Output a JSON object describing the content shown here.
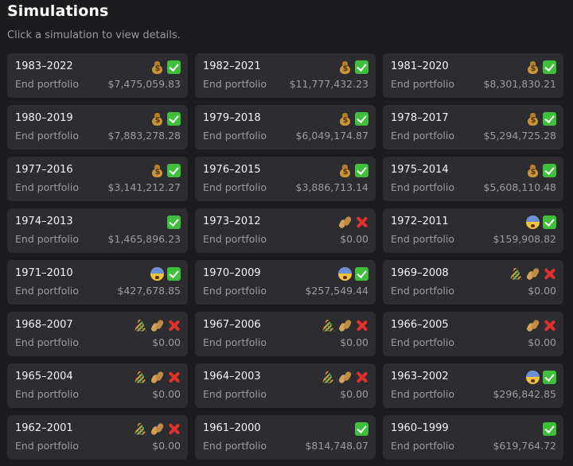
{
  "page": {
    "title": "Simulations",
    "subtitle": "Click a simulation to view details."
  },
  "cards": [
    {
      "years": "1983–2022",
      "label": "End portfolio",
      "value": "$7,475,059.83",
      "icons": [
        "money-bag-icon",
        "check-icon"
      ]
    },
    {
      "years": "1982–2021",
      "label": "End portfolio",
      "value": "$11,777,432.23",
      "icons": [
        "money-bag-icon",
        "check-icon"
      ]
    },
    {
      "years": "1981–2020",
      "label": "End portfolio",
      "value": "$8,301,830.21",
      "icons": [
        "money-bag-icon",
        "check-icon"
      ]
    },
    {
      "years": "1980–2019",
      "label": "End portfolio",
      "value": "$7,883,278.28",
      "icons": [
        "money-bag-icon",
        "check-icon"
      ]
    },
    {
      "years": "1979–2018",
      "label": "End portfolio",
      "value": "$6,049,174.87",
      "icons": [
        "money-bag-icon",
        "check-icon"
      ]
    },
    {
      "years": "1978–2017",
      "label": "End portfolio",
      "value": "$5,294,725.28",
      "icons": [
        "money-bag-icon",
        "check-icon"
      ]
    },
    {
      "years": "1977–2016",
      "label": "End portfolio",
      "value": "$3,141,212.27",
      "icons": [
        "money-bag-icon",
        "check-icon"
      ]
    },
    {
      "years": "1976–2015",
      "label": "End portfolio",
      "value": "$3,886,713.14",
      "icons": [
        "money-bag-icon",
        "check-icon"
      ]
    },
    {
      "years": "1975–2014",
      "label": "End portfolio",
      "value": "$5,608,110.48",
      "icons": [
        "money-bag-icon",
        "check-icon"
      ]
    },
    {
      "years": "1974–2013",
      "label": "End portfolio",
      "value": "$1,465,896.23",
      "icons": [
        "check-icon"
      ]
    },
    {
      "years": "1973–2012",
      "label": "End portfolio",
      "value": "$0.00",
      "icons": [
        "peanuts-icon",
        "cross-icon"
      ]
    },
    {
      "years": "1972–2011",
      "label": "End portfolio",
      "value": "$159,908.82",
      "icons": [
        "fearful-face-icon",
        "check-icon"
      ]
    },
    {
      "years": "1971–2010",
      "label": "End portfolio",
      "value": "$427,678.85",
      "icons": [
        "fearful-face-icon",
        "check-icon"
      ]
    },
    {
      "years": "1970–2009",
      "label": "End portfolio",
      "value": "$257,549.44",
      "icons": [
        "fearful-face-icon",
        "check-icon"
      ]
    },
    {
      "years": "1969–2008",
      "label": "End portfolio",
      "value": "$0.00",
      "icons": [
        "grass-icon",
        "peanuts-icon",
        "cross-icon"
      ]
    },
    {
      "years": "1968–2007",
      "label": "End portfolio",
      "value": "$0.00",
      "icons": [
        "grass-icon",
        "peanuts-icon",
        "cross-icon"
      ]
    },
    {
      "years": "1967–2006",
      "label": "End portfolio",
      "value": "$0.00",
      "icons": [
        "grass-icon",
        "peanuts-icon",
        "cross-icon"
      ]
    },
    {
      "years": "1966–2005",
      "label": "End portfolio",
      "value": "$0.00",
      "icons": [
        "peanuts-icon",
        "cross-icon"
      ]
    },
    {
      "years": "1965–2004",
      "label": "End portfolio",
      "value": "$0.00",
      "icons": [
        "grass-icon",
        "peanuts-icon",
        "cross-icon"
      ]
    },
    {
      "years": "1964–2003",
      "label": "End portfolio",
      "value": "$0.00",
      "icons": [
        "grass-icon",
        "peanuts-icon",
        "cross-icon"
      ]
    },
    {
      "years": "1963–2002",
      "label": "End portfolio",
      "value": "$296,842.85",
      "icons": [
        "fearful-face-icon",
        "check-icon"
      ]
    },
    {
      "years": "1962–2001",
      "label": "End portfolio",
      "value": "$0.00",
      "icons": [
        "grass-icon",
        "peanuts-icon",
        "cross-icon"
      ]
    },
    {
      "years": "1961–2000",
      "label": "End portfolio",
      "value": "$814,748.07",
      "icons": [
        "check-icon"
      ]
    },
    {
      "years": "1960–1999",
      "label": "End portfolio",
      "value": "$619,764.72",
      "icons": [
        "check-icon"
      ]
    }
  ],
  "colors": {
    "background": "#1c1c1e",
    "card": "#2d2d31",
    "success": "#3fbf3b",
    "failure": "#e0312b"
  }
}
